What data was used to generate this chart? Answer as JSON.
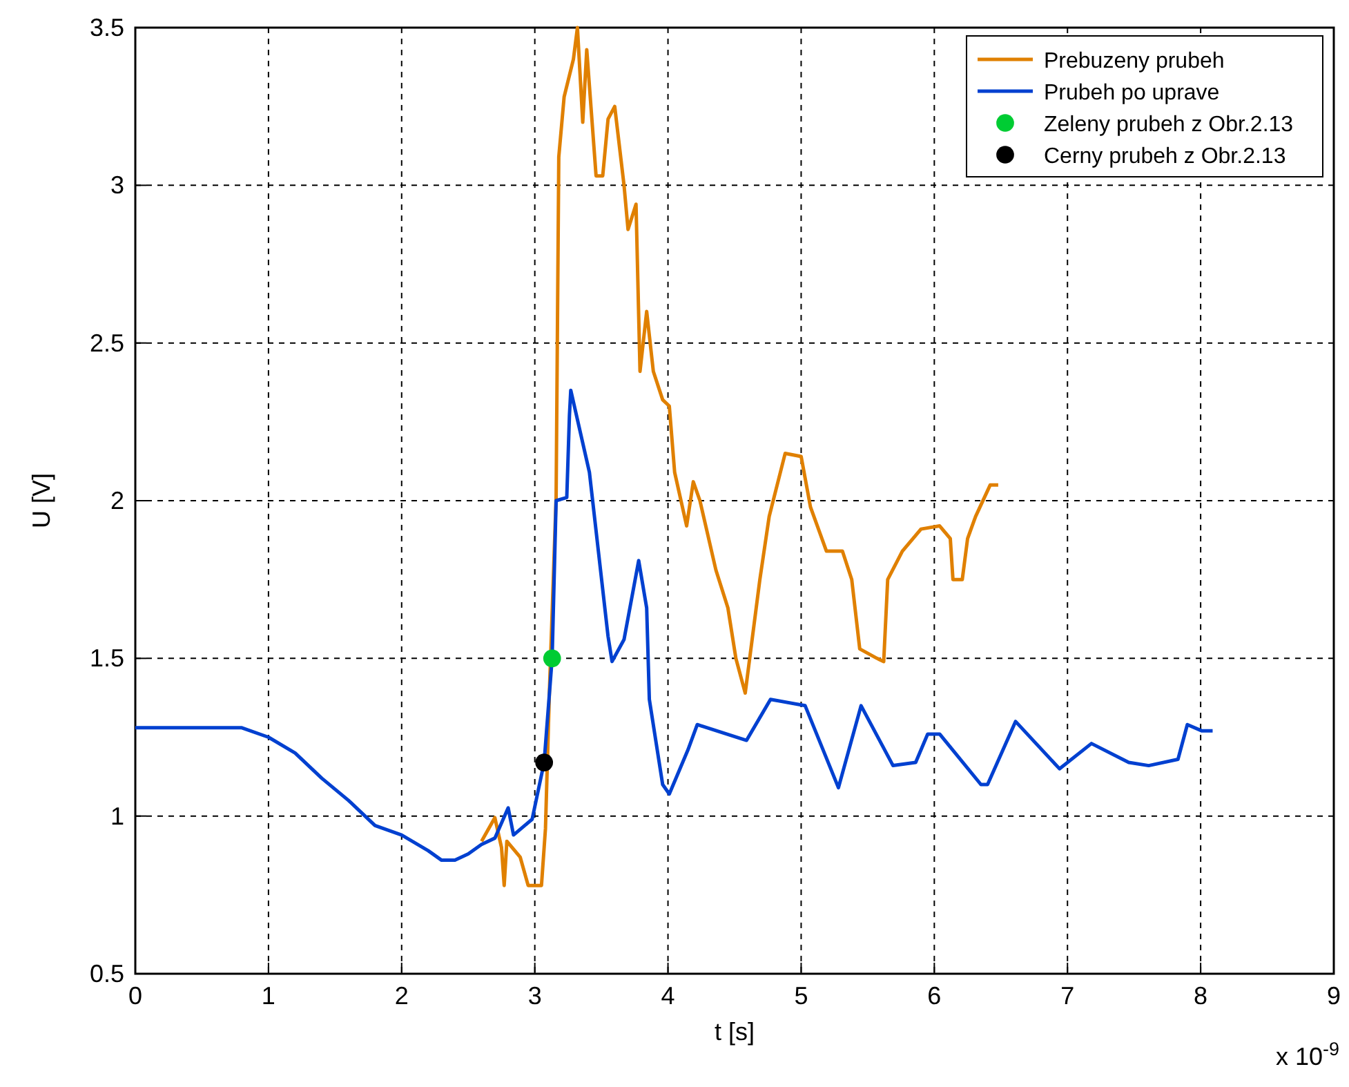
{
  "chart_data": {
    "type": "line",
    "xlabel": "t [s]",
    "ylabel": "U [V]",
    "xlim": [
      0,
      9
    ],
    "ylim": [
      0.5,
      3.5
    ],
    "xticks": [
      0,
      1,
      2,
      3,
      4,
      5,
      6,
      7,
      8,
      9
    ],
    "yticks": [
      0.5,
      1,
      1.5,
      2,
      2.5,
      3,
      3.5
    ],
    "grid": true,
    "legend": "top right",
    "annotations": [
      "x 10$^{-9}$"
    ],
    "series": [
      {
        "name": "Prebuzeny prubeh",
        "color": "#e08000",
        "x": [
          2.6,
          2.7,
          2.75,
          2.77,
          2.79,
          2.89,
          2.95,
          3.05,
          3.08,
          3.11,
          3.16,
          3.18,
          3.22,
          3.29,
          3.32,
          3.36,
          3.39,
          3.46,
          3.51,
          3.55,
          3.6,
          3.67,
          3.7,
          3.76,
          3.79,
          3.84,
          3.89,
          3.96,
          4.01,
          4.05,
          4.14,
          4.19,
          4.24,
          4.36,
          4.45,
          4.51,
          4.58,
          4.69,
          4.76,
          4.88,
          5.0,
          5.07,
          5.19,
          5.31,
          5.38,
          5.44,
          5.57,
          5.62,
          5.65,
          5.76,
          5.9,
          6.04,
          6.12,
          6.14,
          6.21,
          6.25,
          6.31,
          6.42,
          6.48
        ],
        "values": [
          0.92,
          0.995,
          0.9,
          0.78,
          0.92,
          0.87,
          0.78,
          0.78,
          0.96,
          1.4,
          2.01,
          3.09,
          3.28,
          3.4,
          3.5,
          3.2,
          3.43,
          3.03,
          3.03,
          3.21,
          3.25,
          3.0,
          2.86,
          2.94,
          2.41,
          2.6,
          2.41,
          2.32,
          2.3,
          2.09,
          1.92,
          2.06,
          2.0,
          1.78,
          1.66,
          1.5,
          1.39,
          1.75,
          1.95,
          2.15,
          2.14,
          1.98,
          1.84,
          1.84,
          1.75,
          1.53,
          1.5,
          1.49,
          1.75,
          1.84,
          1.91,
          1.92,
          1.88,
          1.75,
          1.75,
          1.88,
          1.95,
          2.05,
          2.05
        ]
      },
      {
        "name": "Prubeh po uprave",
        "color": "#0040d0",
        "x": [
          0,
          0.5,
          0.8,
          1.0,
          1.2,
          1.4,
          1.6,
          1.8,
          2.0,
          2.2,
          2.3,
          2.4,
          2.5,
          2.6,
          2.7,
          2.8,
          2.84,
          2.98,
          3.07,
          3.13,
          3.16,
          3.24,
          3.26,
          3.27,
          3.41,
          3.55,
          3.58,
          3.67,
          3.78,
          3.84,
          3.86,
          3.96,
          4.01,
          4.15,
          4.22,
          4.59,
          4.77,
          5.03,
          5.28,
          5.45,
          5.69,
          5.86,
          5.95,
          6.04,
          6.35,
          6.4,
          6.61,
          6.94,
          7.18,
          7.46,
          7.61,
          7.83,
          7.9,
          8.01,
          8.09
        ],
        "values": [
          1.28,
          1.28,
          1.28,
          1.25,
          1.2,
          1.12,
          1.05,
          0.97,
          0.94,
          0.89,
          0.86,
          0.86,
          0.88,
          0.91,
          0.93,
          1.026,
          0.94,
          0.99,
          1.17,
          1.5,
          2.0,
          2.01,
          2.27,
          2.35,
          2.09,
          1.57,
          1.49,
          1.56,
          1.81,
          1.66,
          1.37,
          1.1,
          1.07,
          1.21,
          1.29,
          1.24,
          1.37,
          1.35,
          1.09,
          1.35,
          1.16,
          1.17,
          1.26,
          1.26,
          1.1,
          1.1,
          1.3,
          1.15,
          1.23,
          1.17,
          1.16,
          1.18,
          1.29,
          1.27,
          1.27
        ]
      },
      {
        "name": "Zeleny prubeh z Obr.2.13",
        "color": "#00cc33",
        "type": "scatter",
        "marker": "circle",
        "x": [
          3.13
        ],
        "values": [
          1.5
        ]
      },
      {
        "name": "Cerny prubeh z Obr.2.13",
        "color": "#000000",
        "type": "scatter",
        "marker": "circle",
        "x": [
          3.07
        ],
        "values": [
          1.17
        ]
      }
    ]
  }
}
